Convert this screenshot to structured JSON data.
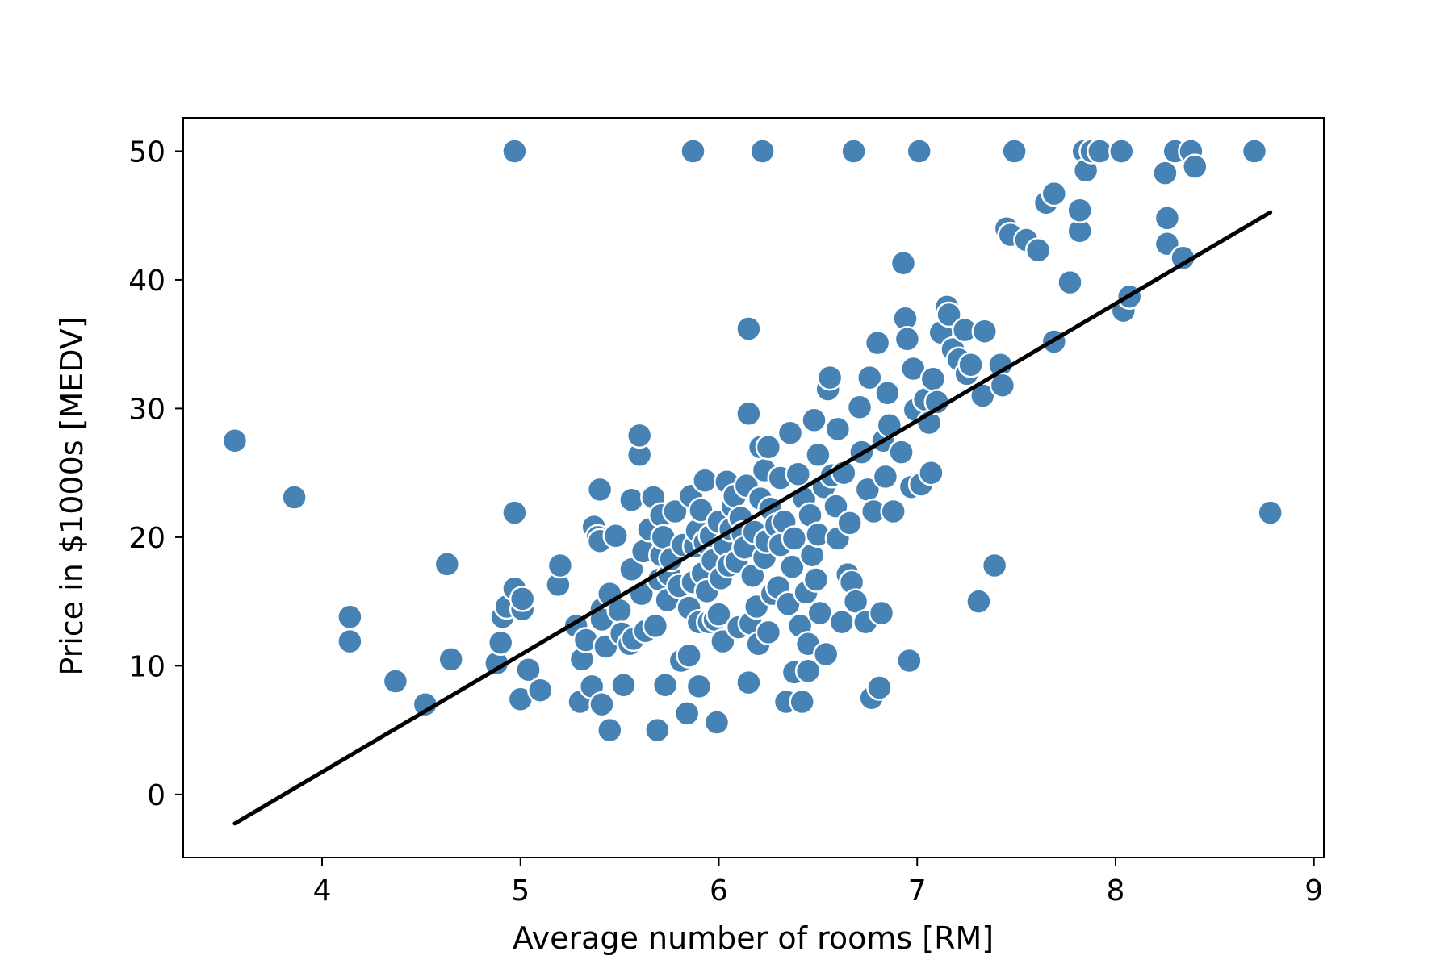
{
  "chart_data": {
    "type": "scatter",
    "title": "",
    "xlabel": "Average number of rooms [RM]",
    "ylabel": "Price in $1000s [MEDV]",
    "xlim": [
      3.3,
      9.05
    ],
    "ylim": [
      -4.9,
      52.6
    ],
    "xticks": [
      4,
      5,
      6,
      7,
      8,
      9
    ],
    "yticks": [
      0,
      10,
      20,
      30,
      40,
      50
    ],
    "grid": false,
    "legend": "none",
    "point_color": "#4682b4",
    "point_edge_color": "#ffffff",
    "line_color": "#000000",
    "series": [
      {
        "type": "scatter",
        "points": [
          [
            3.56,
            27.5
          ],
          [
            3.86,
            23.1
          ],
          [
            4.14,
            13.8
          ],
          [
            4.14,
            11.9
          ],
          [
            4.37,
            8.8
          ],
          [
            4.52,
            7.0
          ],
          [
            4.63,
            17.9
          ],
          [
            4.65,
            10.5
          ],
          [
            4.88,
            10.2
          ],
          [
            4.9,
            11.8
          ],
          [
            4.91,
            13.8
          ],
          [
            4.93,
            14.6
          ],
          [
            4.97,
            16.0
          ],
          [
            4.97,
            21.9
          ],
          [
            4.97,
            50.0
          ],
          [
            5.0,
            7.4
          ],
          [
            5.01,
            14.4
          ],
          [
            5.01,
            15.2
          ],
          [
            5.04,
            9.7
          ],
          [
            5.1,
            8.1
          ],
          [
            5.19,
            16.3
          ],
          [
            5.2,
            17.8
          ],
          [
            5.28,
            13.1
          ],
          [
            5.3,
            7.2
          ],
          [
            5.31,
            10.5
          ],
          [
            5.33,
            12.0
          ],
          [
            5.36,
            8.4
          ],
          [
            5.37,
            20.8
          ],
          [
            5.39,
            20.0
          ],
          [
            5.4,
            19.7
          ],
          [
            5.4,
            23.7
          ],
          [
            5.41,
            7.0
          ],
          [
            5.41,
            14.4
          ],
          [
            5.41,
            13.6
          ],
          [
            5.43,
            11.5
          ],
          [
            5.45,
            5.0
          ],
          [
            5.45,
            15.6
          ],
          [
            5.48,
            20.1
          ],
          [
            5.5,
            14.3
          ],
          [
            5.51,
            12.5
          ],
          [
            5.52,
            8.5
          ],
          [
            5.55,
            11.7
          ],
          [
            5.56,
            17.5
          ],
          [
            5.56,
            22.9
          ],
          [
            5.57,
            12.1
          ],
          [
            5.6,
            26.4
          ],
          [
            5.6,
            27.9
          ],
          [
            5.61,
            15.6
          ],
          [
            5.62,
            18.9
          ],
          [
            5.63,
            12.7
          ],
          [
            5.65,
            20.6
          ],
          [
            5.67,
            23.1
          ],
          [
            5.68,
            13.1
          ],
          [
            5.69,
            5.0
          ],
          [
            5.7,
            16.7
          ],
          [
            5.71,
            18.6
          ],
          [
            5.71,
            21.7
          ],
          [
            5.72,
            20.0
          ],
          [
            5.73,
            8.5
          ],
          [
            5.74,
            15.1
          ],
          [
            5.75,
            17.1
          ],
          [
            5.76,
            18.3
          ],
          [
            5.78,
            22.0
          ],
          [
            5.8,
            16.2
          ],
          [
            5.81,
            10.4
          ],
          [
            5.82,
            19.4
          ],
          [
            5.84,
            6.3
          ],
          [
            5.85,
            14.5
          ],
          [
            5.85,
            10.8
          ],
          [
            5.86,
            23.2
          ],
          [
            5.87,
            16.5
          ],
          [
            5.87,
            50.0
          ],
          [
            5.88,
            19.3
          ],
          [
            5.89,
            20.5
          ],
          [
            5.9,
            13.4
          ],
          [
            5.9,
            8.4
          ],
          [
            5.91,
            22.1
          ],
          [
            5.92,
            17.2
          ],
          [
            5.93,
            19.6
          ],
          [
            5.93,
            24.4
          ],
          [
            5.94,
            15.8
          ],
          [
            5.95,
            13.4
          ],
          [
            5.96,
            20.1
          ],
          [
            5.97,
            18.2
          ],
          [
            5.98,
            13.6
          ],
          [
            5.99,
            5.6
          ],
          [
            6.0,
            21.2
          ],
          [
            6.0,
            14.0
          ],
          [
            6.01,
            16.8
          ],
          [
            6.02,
            11.9
          ],
          [
            6.03,
            19.4
          ],
          [
            6.04,
            24.3
          ],
          [
            6.05,
            17.8
          ],
          [
            6.06,
            20.6
          ],
          [
            6.07,
            22.4
          ],
          [
            6.08,
            23.2
          ],
          [
            6.09,
            18.1
          ],
          [
            6.1,
            13.0
          ],
          [
            6.11,
            21.5
          ],
          [
            6.12,
            20.3
          ],
          [
            6.13,
            19.2
          ],
          [
            6.14,
            24.0
          ],
          [
            6.15,
            8.7
          ],
          [
            6.15,
            36.2
          ],
          [
            6.15,
            29.6
          ],
          [
            6.16,
            13.3
          ],
          [
            6.17,
            17.0
          ],
          [
            6.18,
            20.4
          ],
          [
            6.19,
            14.6
          ],
          [
            6.2,
            11.7
          ],
          [
            6.21,
            23.0
          ],
          [
            6.21,
            27.0
          ],
          [
            6.22,
            50.0
          ],
          [
            6.23,
            18.4
          ],
          [
            6.23,
            25.2
          ],
          [
            6.24,
            19.7
          ],
          [
            6.25,
            27.0
          ],
          [
            6.25,
            12.6
          ],
          [
            6.26,
            22.2
          ],
          [
            6.27,
            15.6
          ],
          [
            6.29,
            20.9
          ],
          [
            6.3,
            16.1
          ],
          [
            6.31,
            24.6
          ],
          [
            6.31,
            19.4
          ],
          [
            6.33,
            21.2
          ],
          [
            6.34,
            7.2
          ],
          [
            6.35,
            14.8
          ],
          [
            6.36,
            28.1
          ],
          [
            6.37,
            17.7
          ],
          [
            6.38,
            9.5
          ],
          [
            6.38,
            19.9
          ],
          [
            6.4,
            24.9
          ],
          [
            6.41,
            13.1
          ],
          [
            6.42,
            7.2
          ],
          [
            6.43,
            23.0
          ],
          [
            6.44,
            15.7
          ],
          [
            6.45,
            11.7
          ],
          [
            6.45,
            9.6
          ],
          [
            6.46,
            21.7
          ],
          [
            6.47,
            18.6
          ],
          [
            6.48,
            29.1
          ],
          [
            6.49,
            16.7
          ],
          [
            6.5,
            26.4
          ],
          [
            6.5,
            20.2
          ],
          [
            6.51,
            14.1
          ],
          [
            6.53,
            23.9
          ],
          [
            6.54,
            10.9
          ],
          [
            6.55,
            31.5
          ],
          [
            6.56,
            32.4
          ],
          [
            6.57,
            24.8
          ],
          [
            6.59,
            22.4
          ],
          [
            6.6,
            28.4
          ],
          [
            6.6,
            19.9
          ],
          [
            6.62,
            13.4
          ],
          [
            6.63,
            25.0
          ],
          [
            6.65,
            17.1
          ],
          [
            6.66,
            21.1
          ],
          [
            6.67,
            16.5
          ],
          [
            6.68,
            50.0
          ],
          [
            6.69,
            15.0
          ],
          [
            6.71,
            30.1
          ],
          [
            6.72,
            26.6
          ],
          [
            6.74,
            13.4
          ],
          [
            6.75,
            23.7
          ],
          [
            6.76,
            32.4
          ],
          [
            6.77,
            7.5
          ],
          [
            6.78,
            22.0
          ],
          [
            6.8,
            35.1
          ],
          [
            6.81,
            8.3
          ],
          [
            6.82,
            14.1
          ],
          [
            6.83,
            27.5
          ],
          [
            6.84,
            24.7
          ],
          [
            6.85,
            31.2
          ],
          [
            6.86,
            28.7
          ],
          [
            6.88,
            22.0
          ],
          [
            6.92,
            26.6
          ],
          [
            6.93,
            41.3
          ],
          [
            6.94,
            37.0
          ],
          [
            6.95,
            35.4
          ],
          [
            6.96,
            10.4
          ],
          [
            6.97,
            23.9
          ],
          [
            6.98,
            33.1
          ],
          [
            6.99,
            29.9
          ],
          [
            7.01,
            50.0
          ],
          [
            7.02,
            24.1
          ],
          [
            7.04,
            30.7
          ],
          [
            7.06,
            28.9
          ],
          [
            7.07,
            25.0
          ],
          [
            7.08,
            32.3
          ],
          [
            7.1,
            30.5
          ],
          [
            7.12,
            35.9
          ],
          [
            7.15,
            37.9
          ],
          [
            7.16,
            37.3
          ],
          [
            7.18,
            34.6
          ],
          [
            7.21,
            33.8
          ],
          [
            7.24,
            36.1
          ],
          [
            7.25,
            32.7
          ],
          [
            7.27,
            33.4
          ],
          [
            7.31,
            15.0
          ],
          [
            7.33,
            31.0
          ],
          [
            7.34,
            36.0
          ],
          [
            7.39,
            17.8
          ],
          [
            7.42,
            33.4
          ],
          [
            7.43,
            31.8
          ],
          [
            7.45,
            44.0
          ],
          [
            7.47,
            43.5
          ],
          [
            7.49,
            50.0
          ],
          [
            7.55,
            43.1
          ],
          [
            7.61,
            42.3
          ],
          [
            7.65,
            46.0
          ],
          [
            7.69,
            46.7
          ],
          [
            7.69,
            35.2
          ],
          [
            7.77,
            39.8
          ],
          [
            7.82,
            43.8
          ],
          [
            7.82,
            45.4
          ],
          [
            7.84,
            50.0
          ],
          [
            7.85,
            48.5
          ],
          [
            7.88,
            50.0
          ],
          [
            7.92,
            50.0
          ],
          [
            8.03,
            50.0
          ],
          [
            8.04,
            37.6
          ],
          [
            8.07,
            38.7
          ],
          [
            8.25,
            48.3
          ],
          [
            8.26,
            44.8
          ],
          [
            8.26,
            42.8
          ],
          [
            8.3,
            50.0
          ],
          [
            8.34,
            41.7
          ],
          [
            8.38,
            50.0
          ],
          [
            8.4,
            48.8
          ],
          [
            8.7,
            50.0
          ],
          [
            8.78,
            21.9
          ]
        ]
      },
      {
        "type": "line",
        "name": "",
        "x": [
          3.56,
          8.78
        ],
        "y": [
          -2.26,
          45.25
        ]
      }
    ]
  }
}
